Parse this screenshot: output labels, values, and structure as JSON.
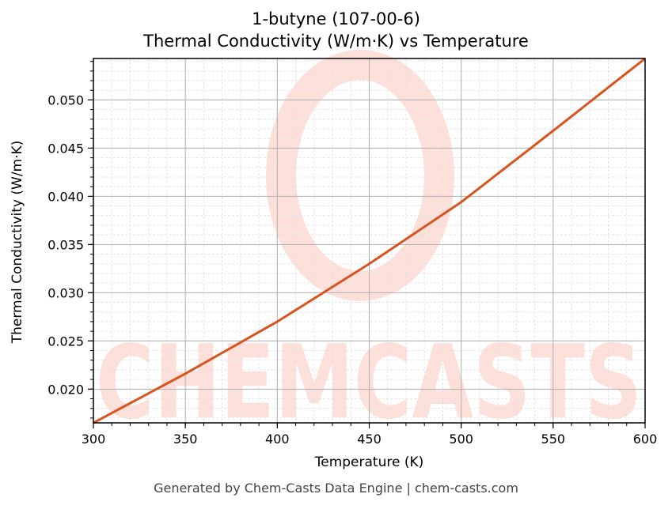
{
  "header": {
    "title_line1": "1-butyne (107-00-6)",
    "title_line2": "Thermal Conductivity (W/m·K) vs Temperature"
  },
  "axes": {
    "xlabel": "Temperature (K)",
    "ylabel": "Thermal Conductivity (W/m·K)",
    "xticks": [
      "300",
      "350",
      "400",
      "450",
      "500",
      "550",
      "600"
    ],
    "yticks": [
      "0.020",
      "0.025",
      "0.030",
      "0.035",
      "0.040",
      "0.045",
      "0.050"
    ]
  },
  "watermark": {
    "text": "CHEMCASTS"
  },
  "footer": {
    "text": "Generated by Chem-Casts Data Engine | chem-casts.com"
  },
  "colors": {
    "line": "#d9531e",
    "watermark": "#fde0da",
    "grid_major": "#b0b0b0",
    "grid_minor": "#e0e0e0"
  },
  "chart_data": {
    "type": "line",
    "title": "1-butyne (107-00-6)\nThermal Conductivity (W/m·K) vs Temperature",
    "xlabel": "Temperature (K)",
    "ylabel": "Thermal Conductivity (W/m·K)",
    "xlim": [
      300,
      600
    ],
    "ylim": [
      0.0165,
      0.0543
    ],
    "grid": true,
    "legend": null,
    "series": [
      {
        "name": "Thermal Conductivity",
        "x": [
          300,
          350,
          400,
          450,
          500,
          550,
          600
        ],
        "values": [
          0.0165,
          0.0216,
          0.027,
          0.033,
          0.0394,
          0.0468,
          0.0543
        ]
      }
    ]
  }
}
